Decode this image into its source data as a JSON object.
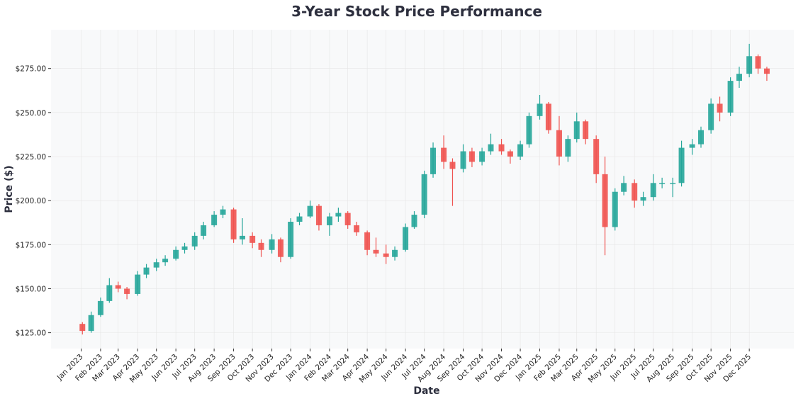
{
  "chart_data": {
    "type": "candlestick",
    "title": "3-Year Stock Price Performance",
    "xlabel": "Date",
    "ylabel": "Price ($)",
    "ylim": [
      116,
      297
    ],
    "xlim": [
      "2022-11-14",
      "2026-02-10"
    ],
    "grid": true,
    "colors": {
      "up": "#26a69a",
      "down": "#ef5350",
      "background": "#f8f9fa",
      "grid": "#e6e6e6"
    },
    "yticks": [
      "$125.00",
      "$150.00",
      "$175.00",
      "$200.00",
      "$225.00",
      "$250.00",
      "$275.00"
    ],
    "ytick_values": [
      125,
      150,
      175,
      200,
      225,
      250,
      275
    ],
    "xticks": [
      "Jan 2023",
      "Feb 2023",
      "Mar 2023",
      "Apr 2023",
      "May 2023",
      "Jun 2023",
      "Jul 2023",
      "Aug 2023",
      "Sep 2023",
      "Oct 2023",
      "Nov 2023",
      "Dec 2023",
      "Jan 2024",
      "Feb 2024",
      "Mar 2024",
      "Apr 2024",
      "May 2024",
      "Jun 2024",
      "Jul 2024",
      "Aug 2024",
      "Sep 2024",
      "Oct 2024",
      "Nov 2024",
      "Dec 2024",
      "Jan 2025",
      "Feb 2025",
      "Mar 2025",
      "Apr 2025",
      "May 2025",
      "Jun 2025",
      "Jul 2025",
      "Aug 2025",
      "Sep 2025",
      "Oct 2025",
      "Nov 2025",
      "Dec 2025"
    ],
    "candles_columns": [
      "date",
      "open",
      "high",
      "low",
      "close"
    ],
    "candles": [
      [
        "2023-01-03",
        130,
        131,
        124,
        126
      ],
      [
        "2023-01-17",
        126,
        137,
        125,
        135
      ],
      [
        "2023-02-01",
        135,
        145,
        134,
        143
      ],
      [
        "2023-02-15",
        143,
        156,
        142,
        152
      ],
      [
        "2023-03-01",
        152,
        154,
        148,
        150
      ],
      [
        "2023-03-15",
        150,
        151,
        144,
        147
      ],
      [
        "2023-04-01",
        147,
        160,
        146,
        158
      ],
      [
        "2023-04-15",
        158,
        164,
        156,
        162
      ],
      [
        "2023-05-01",
        162,
        167,
        160,
        165
      ],
      [
        "2023-05-15",
        165,
        169,
        163,
        167
      ],
      [
        "2023-06-01",
        167,
        174,
        166,
        172
      ],
      [
        "2023-06-15",
        172,
        176,
        170,
        174
      ],
      [
        "2023-07-01",
        174,
        182,
        172,
        180
      ],
      [
        "2023-07-15",
        180,
        188,
        178,
        186
      ],
      [
        "2023-08-01",
        186,
        194,
        185,
        192
      ],
      [
        "2023-08-15",
        192,
        197,
        190,
        195
      ],
      [
        "2023-09-01",
        195,
        196,
        176,
        178
      ],
      [
        "2023-09-15",
        178,
        190,
        175,
        180
      ],
      [
        "2023-10-01",
        180,
        182,
        173,
        176
      ],
      [
        "2023-10-15",
        176,
        178,
        168,
        172
      ],
      [
        "2023-11-01",
        172,
        181,
        170,
        178
      ],
      [
        "2023-11-15",
        178,
        179,
        165,
        168
      ],
      [
        "2023-12-01",
        168,
        190,
        167,
        188
      ],
      [
        "2023-12-15",
        188,
        193,
        186,
        191
      ],
      [
        "2024-01-01",
        191,
        200,
        190,
        197
      ],
      [
        "2024-01-15",
        197,
        198,
        183,
        186
      ],
      [
        "2024-02-01",
        186,
        193,
        180,
        191
      ],
      [
        "2024-02-15",
        191,
        196,
        188,
        193
      ],
      [
        "2024-03-01",
        193,
        194,
        184,
        186
      ],
      [
        "2024-03-15",
        186,
        188,
        180,
        182
      ],
      [
        "2024-04-01",
        182,
        183,
        169,
        172
      ],
      [
        "2024-04-15",
        172,
        179,
        168,
        170
      ],
      [
        "2024-05-01",
        170,
        175,
        164,
        168
      ],
      [
        "2024-05-15",
        168,
        174,
        166,
        172
      ],
      [
        "2024-06-01",
        172,
        187,
        171,
        185
      ],
      [
        "2024-06-15",
        185,
        194,
        184,
        192
      ],
      [
        "2024-07-01",
        192,
        217,
        190,
        215
      ],
      [
        "2024-07-15",
        215,
        233,
        213,
        230
      ],
      [
        "2024-08-01",
        230,
        237,
        218,
        222
      ],
      [
        "2024-08-15",
        222,
        224,
        197,
        218
      ],
      [
        "2024-09-01",
        218,
        232,
        216,
        228
      ],
      [
        "2024-09-15",
        228,
        230,
        219,
        222
      ],
      [
        "2024-10-01",
        222,
        230,
        220,
        228
      ],
      [
        "2024-10-15",
        228,
        238,
        226,
        232
      ],
      [
        "2024-11-01",
        232,
        235,
        226,
        228
      ],
      [
        "2024-11-15",
        228,
        229,
        221,
        225
      ],
      [
        "2024-12-01",
        225,
        234,
        223,
        232
      ],
      [
        "2024-12-15",
        232,
        250,
        230,
        248
      ],
      [
        "2025-01-01",
        248,
        260,
        246,
        255
      ],
      [
        "2025-01-15",
        255,
        256,
        238,
        240
      ],
      [
        "2025-02-01",
        240,
        248,
        220,
        225
      ],
      [
        "2025-02-15",
        225,
        237,
        222,
        235
      ],
      [
        "2025-03-01",
        235,
        250,
        233,
        245
      ],
      [
        "2025-03-15",
        245,
        246,
        232,
        235
      ],
      [
        "2025-04-01",
        235,
        237,
        210,
        215
      ],
      [
        "2025-04-15",
        215,
        225,
        169,
        185
      ],
      [
        "2025-05-01",
        185,
        207,
        183,
        205
      ],
      [
        "2025-05-15",
        205,
        214,
        203,
        210
      ],
      [
        "2025-06-01",
        210,
        212,
        196,
        200
      ],
      [
        "2025-06-15",
        200,
        205,
        197,
        202
      ],
      [
        "2025-07-01",
        202,
        215,
        200,
        210
      ],
      [
        "2025-07-15",
        210,
        213,
        207,
        210
      ],
      [
        "2025-08-01",
        210,
        213,
        202,
        210
      ],
      [
        "2025-08-15",
        210,
        234,
        208,
        230
      ],
      [
        "2025-09-01",
        230,
        235,
        226,
        232
      ],
      [
        "2025-09-15",
        232,
        242,
        230,
        240
      ],
      [
        "2025-10-01",
        240,
        258,
        238,
        255
      ],
      [
        "2025-10-15",
        255,
        259,
        245,
        250
      ],
      [
        "2025-11-01",
        250,
        270,
        248,
        268
      ],
      [
        "2025-11-15",
        268,
        276,
        264,
        272
      ],
      [
        "2025-12-01",
        272,
        289,
        270,
        282
      ],
      [
        "2025-12-15",
        282,
        283,
        272,
        275
      ],
      [
        "2025-12-29",
        275,
        276,
        268,
        272
      ]
    ]
  }
}
